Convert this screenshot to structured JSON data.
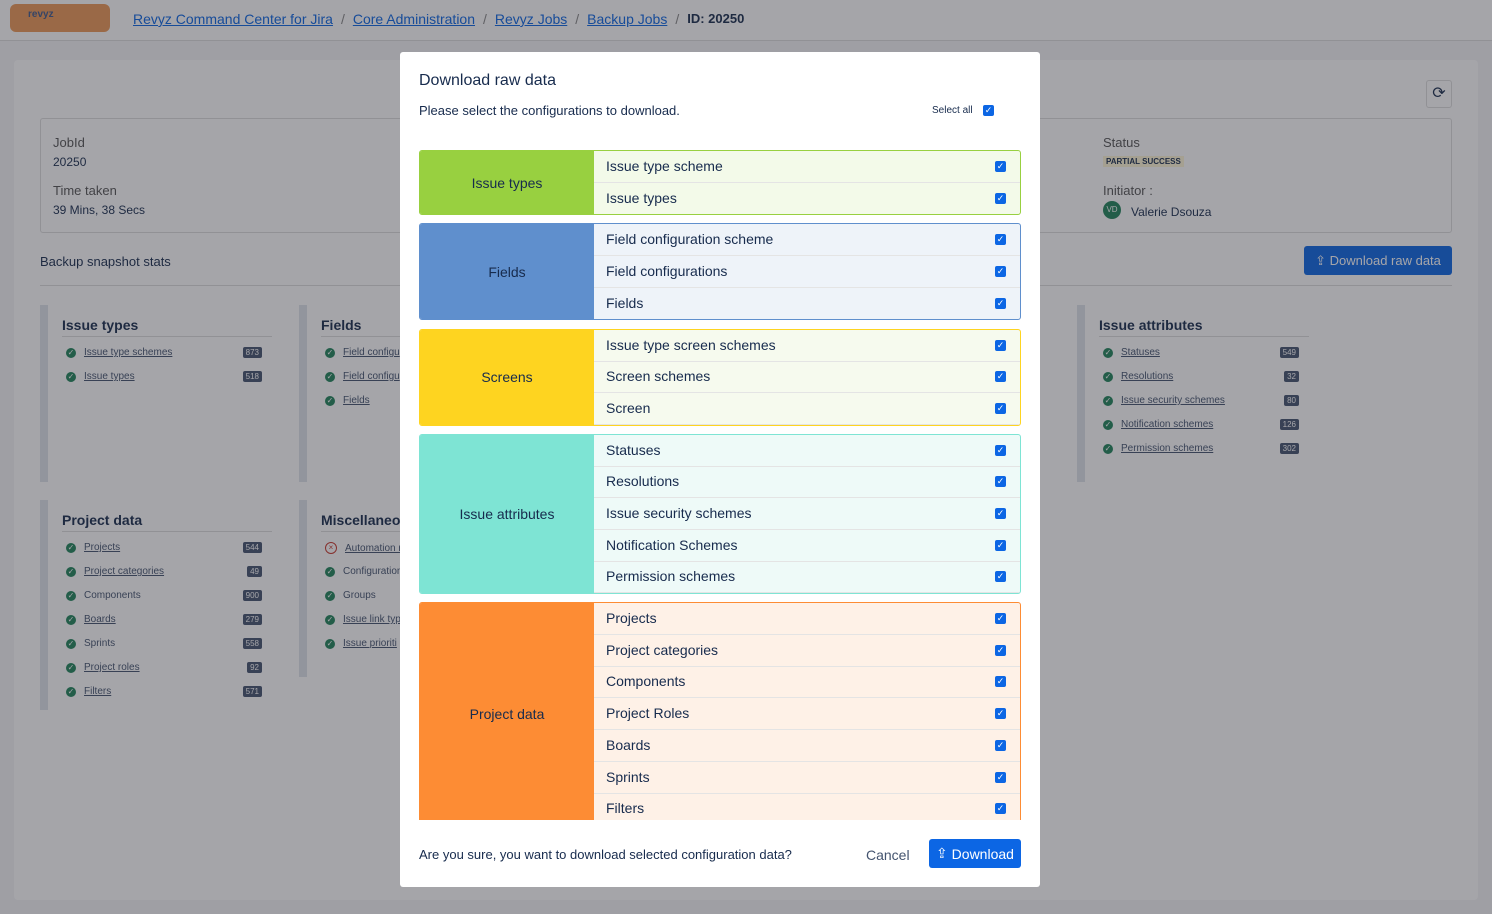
{
  "breadcrumb": {
    "logo": "revyz",
    "items": [
      "Revyz Command Center for Jira",
      "Core Administration",
      "Revyz Jobs",
      "Backup Jobs"
    ],
    "current": "ID: 20250"
  },
  "job": {
    "jobid_label": "JobId",
    "jobid": "20250",
    "time_label": "Time taken",
    "time": "39 Mins, 38 Secs",
    "status_label": "Status",
    "status": "PARTIAL SUCCESS",
    "initiator_label": "Initiator :",
    "initiator_initials": "VD",
    "initiator": "Valerie Dsouza"
  },
  "stats_title": "Backup snapshot stats",
  "download_button": "Download raw data",
  "panels": [
    {
      "title": "Issue types",
      "items": [
        {
          "label": "Issue type schemes",
          "count": "873",
          "ok": true,
          "link": true
        },
        {
          "label": "Issue types",
          "count": "518",
          "ok": true,
          "link": true
        }
      ]
    },
    {
      "title": "Fields",
      "items": [
        {
          "label": "Field configu",
          "ok": true,
          "link": true
        },
        {
          "label": "Field configu",
          "ok": true,
          "link": true
        },
        {
          "label": "Fields",
          "ok": true,
          "link": true
        }
      ]
    },
    {
      "title": "Issue attributes",
      "items": [
        {
          "label": "Statuses",
          "count": "549",
          "ok": true,
          "link": true
        },
        {
          "label": "Resolutions",
          "count": "32",
          "ok": true,
          "link": true
        },
        {
          "label": "Issue security schemes",
          "count": "80",
          "ok": true,
          "link": true
        },
        {
          "label": "Notification schemes",
          "count": "126",
          "ok": true,
          "link": true
        },
        {
          "label": "Permission schemes",
          "count": "302",
          "ok": true,
          "link": true
        }
      ]
    },
    {
      "title": "Project data",
      "items": [
        {
          "label": "Projects",
          "count": "544",
          "ok": true,
          "link": true
        },
        {
          "label": "Project categories",
          "count": "49",
          "ok": true,
          "link": true
        },
        {
          "label": "Components",
          "count": "900",
          "ok": true,
          "link": false
        },
        {
          "label": "Boards",
          "count": "279",
          "ok": true,
          "link": true
        },
        {
          "label": "Sprints",
          "count": "558",
          "ok": true,
          "link": false
        },
        {
          "label": "Project roles",
          "count": "92",
          "ok": true,
          "link": true
        },
        {
          "label": "Filters",
          "count": "571",
          "ok": true,
          "link": true
        }
      ]
    },
    {
      "title": "Miscellaneou",
      "items": [
        {
          "label": "Automation r",
          "ok": false,
          "link": true
        },
        {
          "label": "Configuration",
          "ok": true,
          "link": false
        },
        {
          "label": "Groups",
          "ok": true,
          "link": false
        },
        {
          "label": "Issue link typ",
          "ok": true,
          "link": true
        },
        {
          "label": "Issue prioriti",
          "ok": true,
          "link": true
        }
      ]
    }
  ],
  "modal": {
    "title": "Download raw data",
    "prompt": "Please select the configurations to download.",
    "select_all": "Select all",
    "groups": [
      {
        "name": "Issue types",
        "color": "#98d040",
        "light": "#f3fae9",
        "items": [
          "Issue type scheme",
          "Issue types"
        ]
      },
      {
        "name": "Fields",
        "color": "#5f8fcd",
        "light": "#eef3f9",
        "items": [
          "Field configuration scheme",
          "Field configurations",
          "Fields"
        ]
      },
      {
        "name": "Screens",
        "color": "#fed420",
        "light": "#f6faee",
        "items": [
          "Issue type screen schemes",
          "Screen schemes",
          "Screen"
        ]
      },
      {
        "name": "Issue attributes",
        "color": "#7ee4d4",
        "light": "#eefaf8",
        "items": [
          "Statuses",
          "Resolutions",
          "Issue security schemes",
          "Notification Schemes",
          "Permission schemes"
        ]
      },
      {
        "name": "Project data",
        "color": "#fd8c34",
        "light": "#fef1e7",
        "items": [
          "Projects",
          "Project categories",
          "Components",
          "Project Roles",
          "Boards",
          "Sprints",
          "Filters"
        ]
      }
    ],
    "confirm": "Are you sure, you want to download selected configuration data?",
    "cancel": "Cancel",
    "download": "Download"
  }
}
